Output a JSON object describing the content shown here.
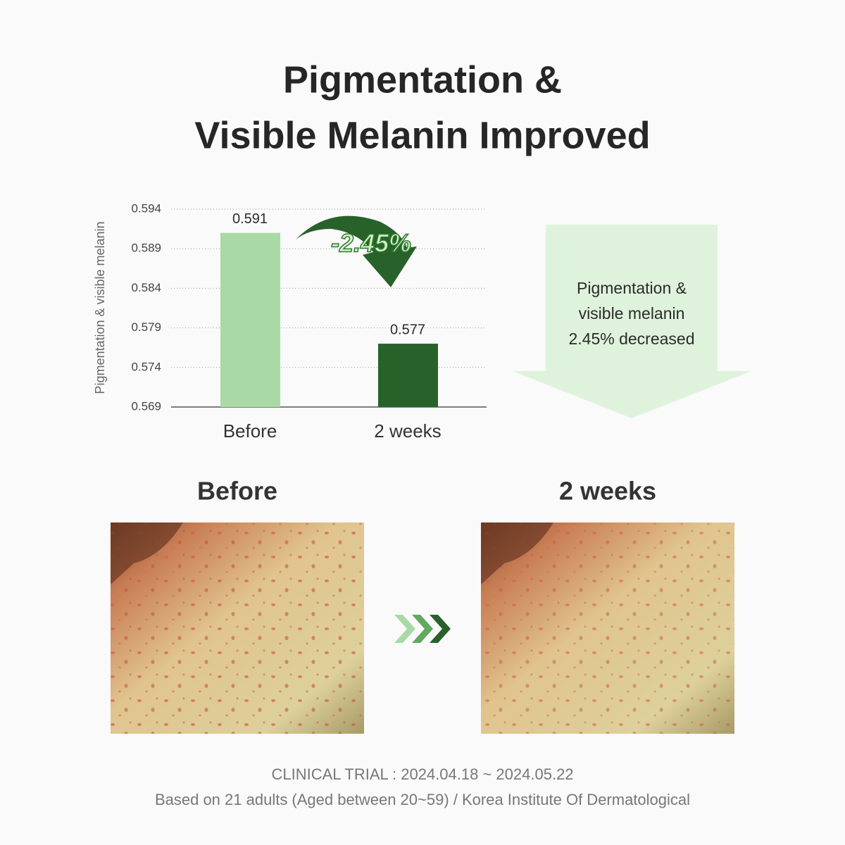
{
  "title": [
    "Pigmentation &",
    "Visible Melanin Improved"
  ],
  "chart_data": {
    "type": "bar",
    "y_label": "Pigmentation & visible melanin",
    "categories": [
      "Before",
      "2 weeks"
    ],
    "values": [
      0.591,
      0.577
    ],
    "colors": [
      "#a9daa5",
      "#28622a"
    ],
    "ylim": [
      0.569,
      0.594
    ],
    "yticks": [
      0.569,
      0.574,
      0.579,
      0.584,
      0.589,
      0.594
    ],
    "grid": true,
    "annotation": "-2.45%"
  },
  "callout": [
    "Pigmentation &",
    "visible melanin",
    "2.45% decreased"
  ],
  "photos": [
    "Before",
    "2 weeks"
  ],
  "footer": [
    "CLINICAL TRIAL : 2024.04.18 ~ 2024.05.22",
    "Based on 21 adults (Aged between 20~59) / Korea Institute Of Dermatological"
  ]
}
